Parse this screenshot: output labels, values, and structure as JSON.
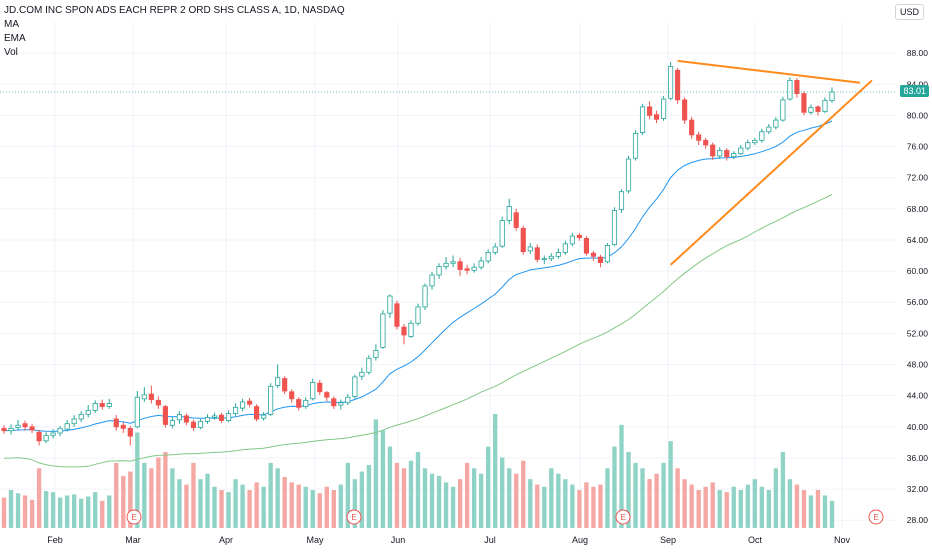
{
  "legend": {
    "title": "JD.COM INC SPON ADS EACH REPR 2 ORD SHS CLASS A, 1D, NASDAQ",
    "ma": "MA",
    "ema": "EMA",
    "vol": "Vol"
  },
  "currency": "USD",
  "last_price_label": "83.01",
  "colors": {
    "up": "#26a69a",
    "down": "#ef5350",
    "vol_up": "#8fd3c7",
    "vol_down": "#f5a7a4",
    "ema": "#2196f3",
    "ma": "#81c784",
    "trendline": "#ff8a1c",
    "grid": "#f0f3fa",
    "last_price": "#26a69a"
  },
  "chart_data": {
    "type": "candlestick",
    "symbol": "JD",
    "exchange": "NASDAQ",
    "interval": "1D",
    "y_ticks": [
      28.0,
      32.0,
      36.0,
      40.0,
      44.0,
      48.0,
      52.0,
      56.0,
      60.0,
      64.0,
      68.0,
      72.0,
      76.0,
      80.0,
      84.0,
      88.0
    ],
    "ylim": [
      27,
      92
    ],
    "x_months": [
      "Feb",
      "Mar",
      "Apr",
      "May",
      "Jun",
      "Jul",
      "Aug",
      "Sep",
      "Oct",
      "Nov"
    ],
    "earnings_markers": [
      {
        "label": "E"
      },
      {
        "label": "E"
      },
      {
        "label": "E"
      },
      {
        "label": "E"
      }
    ],
    "last_price": 83.01,
    "close_series": [
      39.5,
      39.8,
      40.2,
      40.0,
      39.6,
      38.2,
      38.9,
      39.2,
      39.8,
      40.4,
      41.0,
      41.6,
      42.1,
      43.0,
      42.6,
      43.0,
      40.0,
      39.8,
      38.8,
      43.8,
      44.1,
      43.5,
      42.8,
      40.3,
      40.8,
      41.6,
      40.6,
      39.9,
      40.7,
      41.2,
      41.4,
      40.8,
      41.7,
      42.5,
      43.2,
      42.9,
      41.0,
      41.5,
      45.2,
      46.3,
      44.6,
      43.6,
      42.5,
      43.4,
      45.7,
      44.5,
      43.8,
      42.7,
      43.1,
      43.8,
      46.4,
      47.0,
      48.8,
      49.8,
      54.5,
      56.8,
      52.9,
      51.8,
      53.3,
      55.4,
      58.1,
      59.5,
      60.6,
      61.0,
      61.2,
      60.2,
      60.1,
      60.5,
      61.3,
      62.4,
      63.1,
      66.5,
      68.3,
      65.6,
      62.5,
      63.1,
      61.5,
      61.6,
      61.9,
      62.4,
      63.5,
      64.5,
      64.3,
      62.3,
      61.9,
      61.1,
      63.3,
      67.8,
      70.2,
      74.4,
      77.7,
      81.1,
      80.0,
      79.5,
      82.1,
      86.3,
      82.0,
      79.4,
      77.5,
      76.8,
      76.2,
      74.8,
      75.5,
      74.7,
      75.1,
      75.8,
      76.5,
      76.8,
      77.9,
      78.5,
      79.4,
      82.0,
      84.5,
      82.8,
      80.4,
      81.0,
      80.5,
      81.9,
      83.01
    ],
    "candles": [
      {
        "o": 39.8,
        "h": 40.2,
        "l": 39.1,
        "c": 39.5
      },
      {
        "o": 39.5,
        "h": 40.3,
        "l": 39.0,
        "c": 39.8
      },
      {
        "o": 39.9,
        "h": 40.9,
        "l": 39.6,
        "c": 40.2
      },
      {
        "o": 40.4,
        "h": 40.8,
        "l": 39.5,
        "c": 40.0
      },
      {
        "o": 40.0,
        "h": 40.4,
        "l": 39.2,
        "c": 39.6
      },
      {
        "o": 39.3,
        "h": 39.6,
        "l": 37.6,
        "c": 38.2
      },
      {
        "o": 38.2,
        "h": 39.3,
        "l": 37.9,
        "c": 38.9
      },
      {
        "o": 38.9,
        "h": 39.7,
        "l": 38.5,
        "c": 39.2
      },
      {
        "o": 39.2,
        "h": 40.1,
        "l": 38.8,
        "c": 39.8
      },
      {
        "o": 39.7,
        "h": 40.9,
        "l": 39.4,
        "c": 40.4
      },
      {
        "o": 40.4,
        "h": 41.5,
        "l": 40.0,
        "c": 41.0
      },
      {
        "o": 41.0,
        "h": 42.0,
        "l": 40.6,
        "c": 41.6
      },
      {
        "o": 41.6,
        "h": 42.8,
        "l": 41.2,
        "c": 42.1
      },
      {
        "o": 42.1,
        "h": 43.4,
        "l": 41.8,
        "c": 43.0
      },
      {
        "o": 43.0,
        "h": 43.5,
        "l": 42.2,
        "c": 42.6
      },
      {
        "o": 42.6,
        "h": 43.6,
        "l": 42.3,
        "c": 43.0
      },
      {
        "o": 41.0,
        "h": 41.5,
        "l": 39.5,
        "c": 40.0
      },
      {
        "o": 40.2,
        "h": 40.6,
        "l": 39.2,
        "c": 39.8
      },
      {
        "o": 39.8,
        "h": 40.1,
        "l": 37.6,
        "c": 38.8
      },
      {
        "o": 40.0,
        "h": 44.6,
        "l": 39.8,
        "c": 43.8
      },
      {
        "o": 43.6,
        "h": 45.1,
        "l": 43.2,
        "c": 44.1
      },
      {
        "o": 44.2,
        "h": 45.3,
        "l": 43.0,
        "c": 43.5
      },
      {
        "o": 43.4,
        "h": 43.9,
        "l": 42.3,
        "c": 42.8
      },
      {
        "o": 42.6,
        "h": 42.8,
        "l": 39.9,
        "c": 40.3
      },
      {
        "o": 40.2,
        "h": 41.3,
        "l": 39.8,
        "c": 40.8
      },
      {
        "o": 40.9,
        "h": 42.0,
        "l": 40.4,
        "c": 41.6
      },
      {
        "o": 41.4,
        "h": 41.7,
        "l": 40.2,
        "c": 40.6
      },
      {
        "o": 40.6,
        "h": 40.9,
        "l": 39.5,
        "c": 39.9
      },
      {
        "o": 39.9,
        "h": 41.0,
        "l": 39.7,
        "c": 40.7
      },
      {
        "o": 40.7,
        "h": 41.6,
        "l": 40.4,
        "c": 41.2
      },
      {
        "o": 41.2,
        "h": 41.8,
        "l": 40.9,
        "c": 41.4
      },
      {
        "o": 41.5,
        "h": 41.8,
        "l": 40.5,
        "c": 40.8
      },
      {
        "o": 40.8,
        "h": 42.1,
        "l": 40.6,
        "c": 41.7
      },
      {
        "o": 41.7,
        "h": 43.0,
        "l": 41.4,
        "c": 42.5
      },
      {
        "o": 42.4,
        "h": 43.6,
        "l": 42.0,
        "c": 43.2
      },
      {
        "o": 43.3,
        "h": 43.7,
        "l": 42.5,
        "c": 42.9
      },
      {
        "o": 42.6,
        "h": 42.9,
        "l": 40.7,
        "c": 41.0
      },
      {
        "o": 41.1,
        "h": 41.9,
        "l": 40.8,
        "c": 41.5
      },
      {
        "o": 41.6,
        "h": 45.6,
        "l": 41.4,
        "c": 45.2
      },
      {
        "o": 45.3,
        "h": 48.0,
        "l": 45.0,
        "c": 46.3
      },
      {
        "o": 46.2,
        "h": 46.5,
        "l": 44.2,
        "c": 44.6
      },
      {
        "o": 44.5,
        "h": 44.8,
        "l": 43.1,
        "c": 43.6
      },
      {
        "o": 43.5,
        "h": 43.8,
        "l": 42.1,
        "c": 42.5
      },
      {
        "o": 42.6,
        "h": 43.8,
        "l": 42.3,
        "c": 43.4
      },
      {
        "o": 43.6,
        "h": 46.2,
        "l": 43.4,
        "c": 45.7
      },
      {
        "o": 45.6,
        "h": 46.0,
        "l": 44.1,
        "c": 44.5
      },
      {
        "o": 44.4,
        "h": 44.6,
        "l": 43.3,
        "c": 43.8
      },
      {
        "o": 43.6,
        "h": 43.9,
        "l": 42.3,
        "c": 42.7
      },
      {
        "o": 42.8,
        "h": 43.5,
        "l": 42.2,
        "c": 43.1
      },
      {
        "o": 43.1,
        "h": 44.2,
        "l": 42.8,
        "c": 43.8
      },
      {
        "o": 43.9,
        "h": 46.7,
        "l": 43.6,
        "c": 46.4
      },
      {
        "o": 46.5,
        "h": 47.6,
        "l": 46.0,
        "c": 47.0
      },
      {
        "o": 47.0,
        "h": 49.2,
        "l": 46.7,
        "c": 48.8
      },
      {
        "o": 48.9,
        "h": 50.6,
        "l": 48.5,
        "c": 49.8
      },
      {
        "o": 50.2,
        "h": 55.0,
        "l": 50.0,
        "c": 54.5
      },
      {
        "o": 54.6,
        "h": 57.0,
        "l": 54.0,
        "c": 56.8
      },
      {
        "o": 55.8,
        "h": 56.2,
        "l": 52.5,
        "c": 52.9
      },
      {
        "o": 52.8,
        "h": 53.2,
        "l": 50.6,
        "c": 51.8
      },
      {
        "o": 51.6,
        "h": 53.7,
        "l": 51.4,
        "c": 53.3
      },
      {
        "o": 53.3,
        "h": 55.8,
        "l": 53.0,
        "c": 55.4
      },
      {
        "o": 55.4,
        "h": 58.4,
        "l": 55.0,
        "c": 58.1
      },
      {
        "o": 58.1,
        "h": 59.9,
        "l": 57.6,
        "c": 59.5
      },
      {
        "o": 59.5,
        "h": 61.0,
        "l": 59.0,
        "c": 60.6
      },
      {
        "o": 60.6,
        "h": 61.8,
        "l": 60.2,
        "c": 61.0
      },
      {
        "o": 61.0,
        "h": 62.0,
        "l": 60.5,
        "c": 61.2
      },
      {
        "o": 61.2,
        "h": 61.7,
        "l": 59.4,
        "c": 60.2
      },
      {
        "o": 60.3,
        "h": 60.8,
        "l": 59.6,
        "c": 60.1
      },
      {
        "o": 60.1,
        "h": 61.0,
        "l": 59.8,
        "c": 60.5
      },
      {
        "o": 60.5,
        "h": 61.8,
        "l": 60.2,
        "c": 61.3
      },
      {
        "o": 61.3,
        "h": 62.8,
        "l": 61.0,
        "c": 62.4
      },
      {
        "o": 62.4,
        "h": 63.6,
        "l": 62.1,
        "c": 63.1
      },
      {
        "o": 63.2,
        "h": 67.0,
        "l": 63.0,
        "c": 66.5
      },
      {
        "o": 66.5,
        "h": 69.3,
        "l": 66.0,
        "c": 68.3
      },
      {
        "o": 67.5,
        "h": 68.0,
        "l": 65.2,
        "c": 65.6
      },
      {
        "o": 65.5,
        "h": 65.8,
        "l": 62.1,
        "c": 62.5
      },
      {
        "o": 62.6,
        "h": 63.6,
        "l": 62.2,
        "c": 63.1
      },
      {
        "o": 63.0,
        "h": 63.4,
        "l": 61.1,
        "c": 61.5
      },
      {
        "o": 61.5,
        "h": 62.0,
        "l": 60.9,
        "c": 61.6
      },
      {
        "o": 61.6,
        "h": 62.3,
        "l": 61.3,
        "c": 61.9
      },
      {
        "o": 61.9,
        "h": 62.9,
        "l": 61.6,
        "c": 62.4
      },
      {
        "o": 62.4,
        "h": 63.9,
        "l": 62.1,
        "c": 63.5
      },
      {
        "o": 63.5,
        "h": 64.9,
        "l": 63.2,
        "c": 64.5
      },
      {
        "o": 64.6,
        "h": 64.9,
        "l": 63.9,
        "c": 64.3
      },
      {
        "o": 64.2,
        "h": 64.5,
        "l": 62.0,
        "c": 62.3
      },
      {
        "o": 62.3,
        "h": 62.6,
        "l": 61.3,
        "c": 61.9
      },
      {
        "o": 61.8,
        "h": 62.1,
        "l": 60.5,
        "c": 61.1
      },
      {
        "o": 61.2,
        "h": 63.6,
        "l": 61.0,
        "c": 63.3
      },
      {
        "o": 63.4,
        "h": 68.2,
        "l": 63.2,
        "c": 67.8
      },
      {
        "o": 67.9,
        "h": 70.5,
        "l": 67.5,
        "c": 70.2
      },
      {
        "o": 70.3,
        "h": 74.8,
        "l": 70.0,
        "c": 74.4
      },
      {
        "o": 74.5,
        "h": 78.1,
        "l": 74.2,
        "c": 77.7
      },
      {
        "o": 77.8,
        "h": 81.5,
        "l": 77.5,
        "c": 81.1
      },
      {
        "o": 81.1,
        "h": 81.8,
        "l": 79.5,
        "c": 80.0
      },
      {
        "o": 80.1,
        "h": 80.6,
        "l": 79.0,
        "c": 79.5
      },
      {
        "o": 79.6,
        "h": 82.5,
        "l": 79.3,
        "c": 82.1
      },
      {
        "o": 82.2,
        "h": 86.9,
        "l": 82.0,
        "c": 86.3
      },
      {
        "o": 85.8,
        "h": 86.1,
        "l": 81.5,
        "c": 82.0
      },
      {
        "o": 82.0,
        "h": 82.3,
        "l": 78.9,
        "c": 79.4
      },
      {
        "o": 79.4,
        "h": 79.8,
        "l": 77.0,
        "c": 77.5
      },
      {
        "o": 77.5,
        "h": 77.9,
        "l": 76.2,
        "c": 76.8
      },
      {
        "o": 76.8,
        "h": 77.1,
        "l": 75.7,
        "c": 76.2
      },
      {
        "o": 76.2,
        "h": 76.5,
        "l": 74.3,
        "c": 74.8
      },
      {
        "o": 74.8,
        "h": 75.9,
        "l": 74.4,
        "c": 75.5
      },
      {
        "o": 75.5,
        "h": 75.8,
        "l": 74.2,
        "c": 74.7
      },
      {
        "o": 74.7,
        "h": 75.4,
        "l": 74.4,
        "c": 75.1
      },
      {
        "o": 75.1,
        "h": 76.2,
        "l": 74.9,
        "c": 75.8
      },
      {
        "o": 75.8,
        "h": 76.9,
        "l": 75.5,
        "c": 76.5
      },
      {
        "o": 76.5,
        "h": 77.1,
        "l": 76.2,
        "c": 76.8
      },
      {
        "o": 76.8,
        "h": 78.3,
        "l": 76.5,
        "c": 77.9
      },
      {
        "o": 77.9,
        "h": 78.9,
        "l": 77.6,
        "c": 78.5
      },
      {
        "o": 78.5,
        "h": 79.8,
        "l": 78.2,
        "c": 79.4
      },
      {
        "o": 79.4,
        "h": 82.4,
        "l": 79.2,
        "c": 82.0
      },
      {
        "o": 82.1,
        "h": 84.9,
        "l": 81.9,
        "c": 84.5
      },
      {
        "o": 84.5,
        "h": 84.8,
        "l": 82.3,
        "c": 82.8
      },
      {
        "o": 82.8,
        "h": 83.1,
        "l": 80.0,
        "c": 80.4
      },
      {
        "o": 80.4,
        "h": 81.4,
        "l": 80.1,
        "c": 81.0
      },
      {
        "o": 81.1,
        "h": 81.3,
        "l": 80.0,
        "c": 80.5
      },
      {
        "o": 80.5,
        "h": 82.3,
        "l": 80.3,
        "c": 81.9
      },
      {
        "o": 81.9,
        "h": 83.6,
        "l": 81.6,
        "c": 83.01
      }
    ],
    "volume_relative": [
      0.28,
      0.35,
      0.32,
      0.3,
      0.26,
      0.55,
      0.34,
      0.33,
      0.28,
      0.3,
      0.31,
      0.27,
      0.29,
      0.33,
      0.25,
      0.3,
      0.6,
      0.48,
      0.52,
      0.88,
      0.6,
      0.55,
      0.65,
      0.7,
      0.55,
      0.45,
      0.4,
      0.6,
      0.45,
      0.5,
      0.38,
      0.35,
      0.33,
      0.45,
      0.4,
      0.35,
      0.42,
      0.38,
      0.6,
      0.55,
      0.47,
      0.42,
      0.4,
      0.38,
      0.35,
      0.32,
      0.38,
      0.35,
      0.4,
      0.6,
      0.45,
      0.52,
      0.58,
      1.0,
      0.9,
      0.75,
      0.6,
      0.55,
      0.62,
      0.7,
      0.55,
      0.5,
      0.48,
      0.42,
      0.38,
      0.45,
      0.6,
      0.55,
      0.5,
      0.75,
      1.05,
      0.65,
      0.55,
      0.5,
      0.62,
      0.45,
      0.4,
      0.38,
      0.55,
      0.5,
      0.45,
      0.4,
      0.35,
      0.42,
      0.38,
      0.4,
      0.55,
      0.75,
      0.95,
      0.7,
      0.6,
      0.55,
      0.45,
      0.5,
      0.6,
      0.8,
      0.55,
      0.45,
      0.4,
      0.35,
      0.38,
      0.42,
      0.35,
      0.33,
      0.38,
      0.35,
      0.4,
      0.45,
      0.38,
      0.35,
      0.55,
      0.7,
      0.45,
      0.4,
      0.35,
      0.3,
      0.35,
      0.3,
      0.25
    ]
  }
}
